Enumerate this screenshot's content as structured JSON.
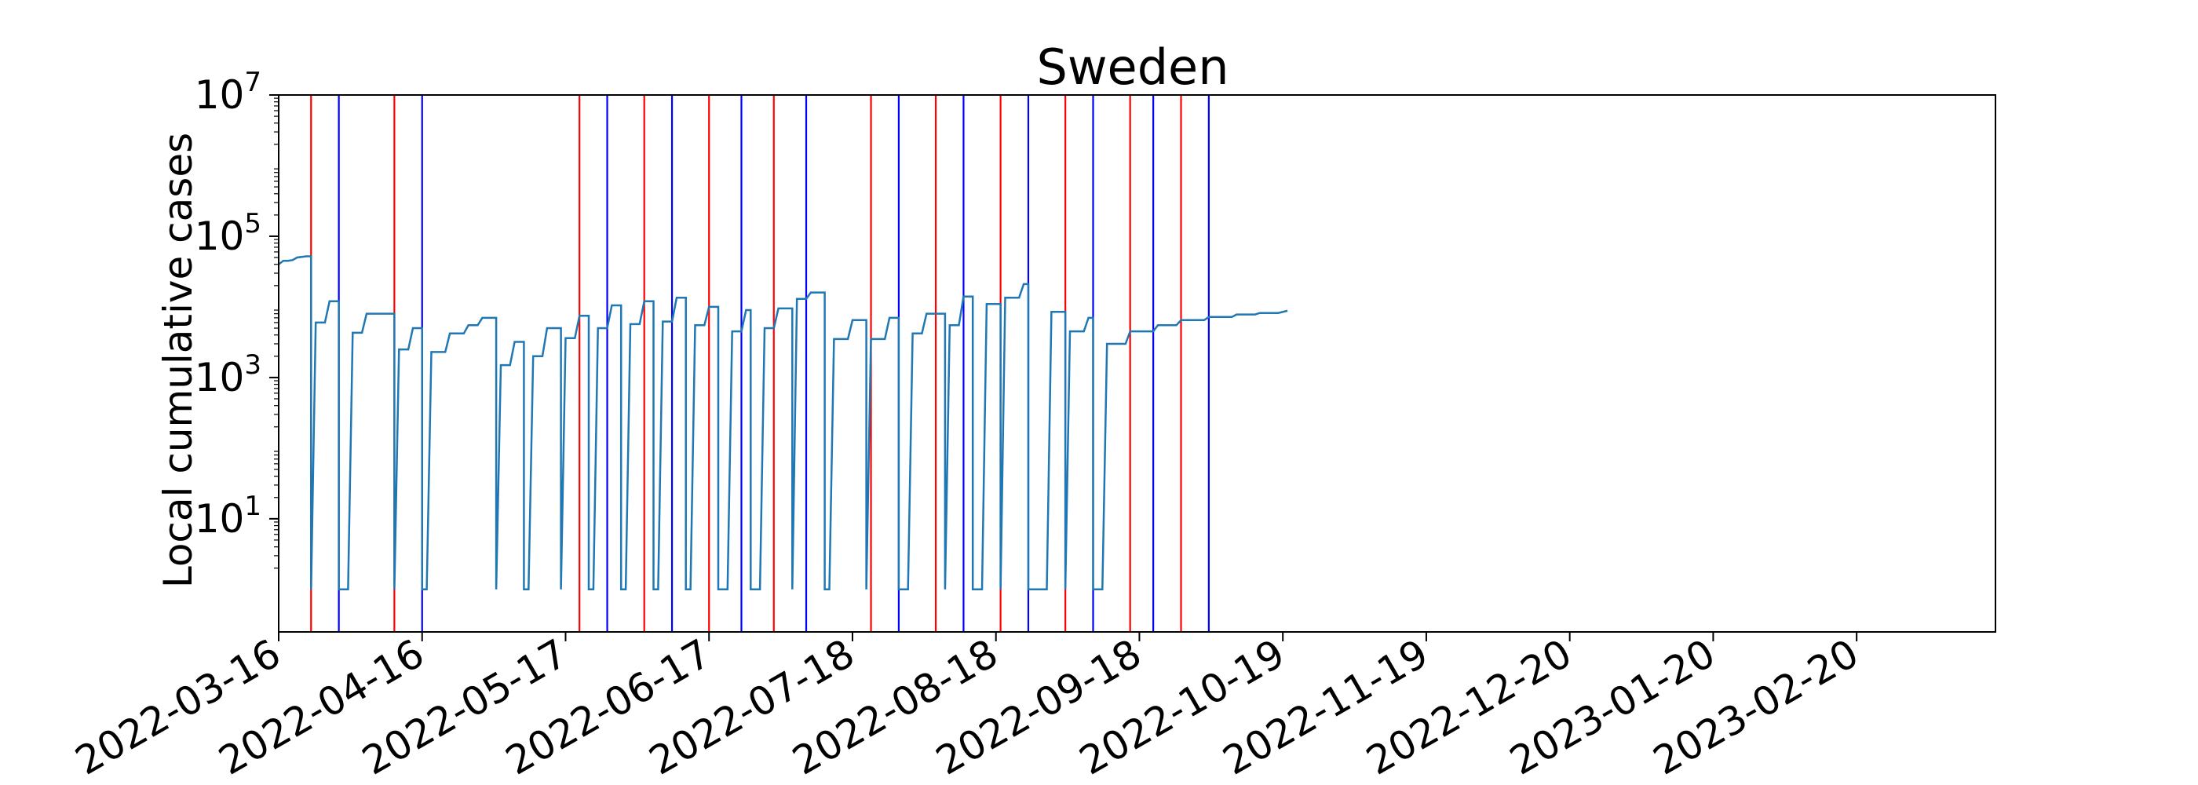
{
  "chart_data": {
    "type": "line",
    "title": "Sweden",
    "xlabel": "",
    "ylabel": "Local cumulative cases",
    "yscale": "log",
    "ylim": [
      0.25,
      10000000
    ],
    "xlim": [
      "2022-03-16",
      "2023-03-22"
    ],
    "grid": false,
    "legend": "none",
    "x_tick_labels": [
      "2022-03-16",
      "2022-04-16",
      "2022-05-17",
      "2022-06-17",
      "2022-07-18",
      "2022-08-18",
      "2022-09-18",
      "2022-10-19",
      "2022-11-19",
      "2022-12-20",
      "2023-01-20",
      "2023-02-20"
    ],
    "y_ticks": [
      {
        "base": "10",
        "exp": "1",
        "value": 10
      },
      {
        "base": "10",
        "exp": "3",
        "value": 1000
      },
      {
        "base": "10",
        "exp": "5",
        "value": 100000
      },
      {
        "base": "10",
        "exp": "7",
        "value": 10000000
      }
    ],
    "line_color": "#1f77b4",
    "red_lines": [
      "2022-03-23",
      "2022-04-10",
      "2022-05-20",
      "2022-06-03",
      "2022-06-17",
      "2022-07-01",
      "2022-07-22",
      "2022-08-05",
      "2022-08-19",
      "2022-09-02",
      "2022-09-16",
      "2022-09-27"
    ],
    "blue_lines": [
      "2022-03-29",
      "2022-04-16",
      "2022-05-26",
      "2022-06-09",
      "2022-06-24",
      "2022-07-08",
      "2022-07-28",
      "2022-08-11",
      "2022-08-25",
      "2022-09-08",
      "2022-09-21",
      "2022-10-03"
    ],
    "red_color": "#ff0000",
    "blue_color": "#0000ff",
    "series": [
      {
        "points": [
          [
            "2022-03-16",
            40000
          ],
          [
            "2022-03-17",
            45000
          ],
          [
            "2022-03-18",
            45000
          ],
          [
            "2022-03-19",
            46000
          ],
          [
            "2022-03-20",
            50000
          ],
          [
            "2022-03-22",
            52000
          ],
          [
            "2022-03-23",
            52000
          ],
          [
            "2022-03-23",
            1
          ],
          [
            "2022-03-24",
            6000
          ],
          [
            "2022-03-26",
            6000
          ],
          [
            "2022-03-27",
            12000
          ],
          [
            "2022-03-29",
            12000
          ],
          [
            "2022-03-29",
            1
          ],
          [
            "2022-03-30",
            1
          ],
          [
            "2022-03-31",
            1
          ],
          [
            "2022-04-01",
            4300
          ],
          [
            "2022-04-03",
            4300
          ],
          [
            "2022-04-04",
            8000
          ],
          [
            "2022-04-10",
            8000
          ],
          [
            "2022-04-10",
            1
          ],
          [
            "2022-04-11",
            2500
          ],
          [
            "2022-04-13",
            2500
          ],
          [
            "2022-04-14",
            5000
          ],
          [
            "2022-04-16",
            5000
          ],
          [
            "2022-04-16",
            1
          ],
          [
            "2022-04-17",
            1
          ],
          [
            "2022-04-18",
            2300
          ],
          [
            "2022-04-21",
            2300
          ],
          [
            "2022-04-22",
            4200
          ],
          [
            "2022-04-25",
            4200
          ],
          [
            "2022-04-26",
            5500
          ],
          [
            "2022-04-28",
            5500
          ],
          [
            "2022-04-29",
            7000
          ],
          [
            "2022-05-02",
            7000
          ],
          [
            "2022-05-02",
            1
          ],
          [
            "2022-05-03",
            1500
          ],
          [
            "2022-05-05",
            1500
          ],
          [
            "2022-05-06",
            3200
          ],
          [
            "2022-05-08",
            3200
          ],
          [
            "2022-05-08",
            1
          ],
          [
            "2022-05-09",
            1
          ],
          [
            "2022-05-10",
            2000
          ],
          [
            "2022-05-12",
            2000
          ],
          [
            "2022-05-13",
            5000
          ],
          [
            "2022-05-16",
            5000
          ],
          [
            "2022-05-16",
            1
          ],
          [
            "2022-05-17",
            3600
          ],
          [
            "2022-05-19",
            3600
          ],
          [
            "2022-05-20",
            7500
          ],
          [
            "2022-05-22",
            7500
          ],
          [
            "2022-05-22",
            1
          ],
          [
            "2022-05-23",
            1
          ],
          [
            "2022-05-24",
            5000
          ],
          [
            "2022-05-26",
            5000
          ],
          [
            "2022-05-27",
            10500
          ],
          [
            "2022-05-29",
            10500
          ],
          [
            "2022-05-29",
            1
          ],
          [
            "2022-05-30",
            1
          ],
          [
            "2022-05-31",
            5700
          ],
          [
            "2022-06-02",
            5700
          ],
          [
            "2022-06-03",
            12000
          ],
          [
            "2022-06-05",
            12000
          ],
          [
            "2022-06-05",
            1
          ],
          [
            "2022-06-06",
            1
          ],
          [
            "2022-06-07",
            6200
          ],
          [
            "2022-06-09",
            6200
          ],
          [
            "2022-06-10",
            13500
          ],
          [
            "2022-06-12",
            13500
          ],
          [
            "2022-06-12",
            1
          ],
          [
            "2022-06-13",
            1
          ],
          [
            "2022-06-14",
            5500
          ],
          [
            "2022-06-16",
            5500
          ],
          [
            "2022-06-17",
            10000
          ],
          [
            "2022-06-19",
            10000
          ],
          [
            "2022-06-19",
            1
          ],
          [
            "2022-06-21",
            1
          ],
          [
            "2022-06-22",
            4500
          ],
          [
            "2022-06-24",
            4500
          ],
          [
            "2022-06-25",
            9000
          ],
          [
            "2022-06-26",
            9000
          ],
          [
            "2022-06-26",
            1
          ],
          [
            "2022-06-28",
            1
          ],
          [
            "2022-06-29",
            5000
          ],
          [
            "2022-07-01",
            5000
          ],
          [
            "2022-07-02",
            9500
          ],
          [
            "2022-07-05",
            9500
          ],
          [
            "2022-07-05",
            1
          ],
          [
            "2022-07-06",
            13000
          ],
          [
            "2022-07-08",
            13000
          ],
          [
            "2022-07-09",
            16000
          ],
          [
            "2022-07-12",
            16000
          ],
          [
            "2022-07-12",
            1
          ],
          [
            "2022-07-13",
            1
          ],
          [
            "2022-07-14",
            3500
          ],
          [
            "2022-07-17",
            3500
          ],
          [
            "2022-07-18",
            6500
          ],
          [
            "2022-07-21",
            6500
          ],
          [
            "2022-07-21",
            1
          ],
          [
            "2022-07-22",
            3500
          ],
          [
            "2022-07-25",
            3500
          ],
          [
            "2022-07-26",
            7000
          ],
          [
            "2022-07-28",
            7000
          ],
          [
            "2022-07-28",
            1
          ],
          [
            "2022-07-30",
            1
          ],
          [
            "2022-07-31",
            4200
          ],
          [
            "2022-08-02",
            4200
          ],
          [
            "2022-08-03",
            8000
          ],
          [
            "2022-08-07",
            8000
          ],
          [
            "2022-08-07",
            1
          ],
          [
            "2022-08-08",
            5500
          ],
          [
            "2022-08-10",
            5500
          ],
          [
            "2022-08-11",
            14000
          ],
          [
            "2022-08-13",
            14000
          ],
          [
            "2022-08-13",
            1
          ],
          [
            "2022-08-15",
            1
          ],
          [
            "2022-08-16",
            11000
          ],
          [
            "2022-08-19",
            11000
          ],
          [
            "2022-08-19",
            1
          ],
          [
            "2022-08-20",
            13500
          ],
          [
            "2022-08-23",
            13500
          ],
          [
            "2022-08-24",
            21000
          ],
          [
            "2022-08-25",
            21000
          ],
          [
            "2022-08-25",
            1
          ],
          [
            "2022-08-29",
            1
          ],
          [
            "2022-08-30",
            8500
          ],
          [
            "2022-09-02",
            8500
          ],
          [
            "2022-09-02",
            1
          ],
          [
            "2022-09-03",
            4500
          ],
          [
            "2022-09-06",
            4500
          ],
          [
            "2022-09-07",
            7000
          ],
          [
            "2022-09-08",
            7000
          ],
          [
            "2022-09-08",
            1
          ],
          [
            "2022-09-10",
            1
          ],
          [
            "2022-09-11",
            3000
          ],
          [
            "2022-09-15",
            3000
          ],
          [
            "2022-09-16",
            4500
          ],
          [
            "2022-09-21",
            4500
          ],
          [
            "2022-09-22",
            5500
          ],
          [
            "2022-09-26",
            5500
          ],
          [
            "2022-09-27",
            6500
          ],
          [
            "2022-10-02",
            6500
          ],
          [
            "2022-10-03",
            7200
          ],
          [
            "2022-10-08",
            7200
          ],
          [
            "2022-10-09",
            7800
          ],
          [
            "2022-10-13",
            7800
          ],
          [
            "2022-10-14",
            8200
          ],
          [
            "2022-10-18",
            8200
          ],
          [
            "2022-10-20",
            8800
          ]
        ]
      }
    ]
  }
}
